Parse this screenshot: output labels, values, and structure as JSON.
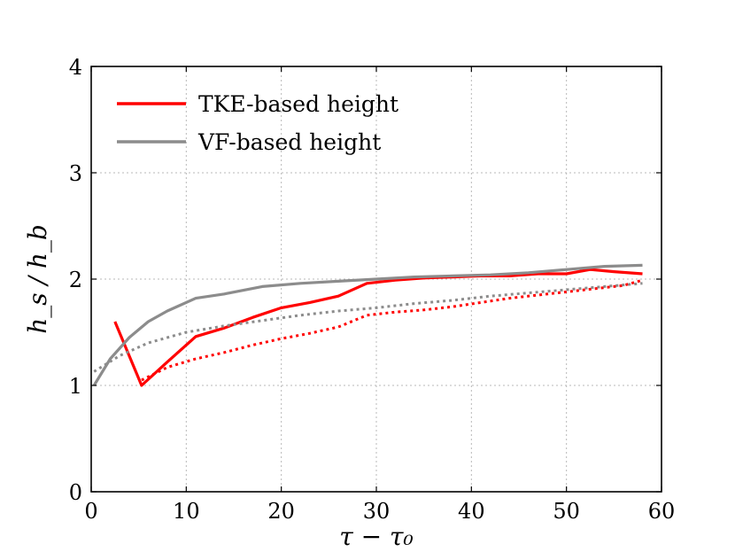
{
  "chart_data": {
    "type": "line",
    "title": "",
    "xlabel": "τ − τ₀",
    "ylabel": "h_s / h_b",
    "xlim": [
      0,
      60
    ],
    "ylim": [
      0,
      4
    ],
    "xticks": [
      0,
      10,
      20,
      30,
      40,
      50,
      60
    ],
    "yticks": [
      0,
      1,
      2,
      3,
      4
    ],
    "grid": true,
    "legend_position": "top-left",
    "series": [
      {
        "name": "TKE-based height",
        "color": "#ff0000",
        "style": "solid",
        "x": [
          2.5,
          5.3,
          8,
          11,
          14,
          17,
          20,
          23,
          26,
          29,
          32,
          35,
          38,
          41,
          44,
          47,
          50,
          52.5,
          55,
          58
        ],
        "y": [
          1.6,
          1.0,
          1.22,
          1.46,
          1.54,
          1.64,
          1.73,
          1.78,
          1.84,
          1.96,
          1.99,
          2.01,
          2.02,
          2.03,
          2.03,
          2.05,
          2.05,
          2.09,
          2.07,
          2.05
        ]
      },
      {
        "name": "VF-based height",
        "color": "#8c8c8c",
        "style": "solid",
        "x": [
          0.3,
          2,
          4,
          6,
          8,
          11,
          14,
          18,
          22,
          26,
          30,
          34,
          38,
          42,
          46,
          50,
          54,
          58
        ],
        "y": [
          1.0,
          1.25,
          1.45,
          1.6,
          1.7,
          1.82,
          1.86,
          1.93,
          1.96,
          1.98,
          2.0,
          2.02,
          2.03,
          2.04,
          2.06,
          2.09,
          2.12,
          2.13
        ]
      },
      {
        "name": "",
        "color": "#ff0000",
        "style": "dotted",
        "x": [
          5.3,
          8,
          11,
          14,
          17,
          20,
          23,
          26,
          29,
          32,
          35,
          38,
          41,
          44,
          47,
          50,
          53,
          56,
          58
        ],
        "y": [
          1.05,
          1.17,
          1.25,
          1.31,
          1.38,
          1.44,
          1.49,
          1.55,
          1.66,
          1.69,
          1.71,
          1.74,
          1.78,
          1.82,
          1.85,
          1.88,
          1.91,
          1.94,
          1.99
        ]
      },
      {
        "name": "",
        "color": "#8c8c8c",
        "style": "dotted",
        "x": [
          0.3,
          3,
          6,
          10,
          14,
          18,
          22,
          26,
          30,
          34,
          38,
          42,
          46,
          50,
          54,
          58
        ],
        "y": [
          1.13,
          1.28,
          1.4,
          1.5,
          1.56,
          1.61,
          1.66,
          1.7,
          1.73,
          1.77,
          1.8,
          1.84,
          1.87,
          1.9,
          1.93,
          1.96
        ]
      }
    ]
  }
}
